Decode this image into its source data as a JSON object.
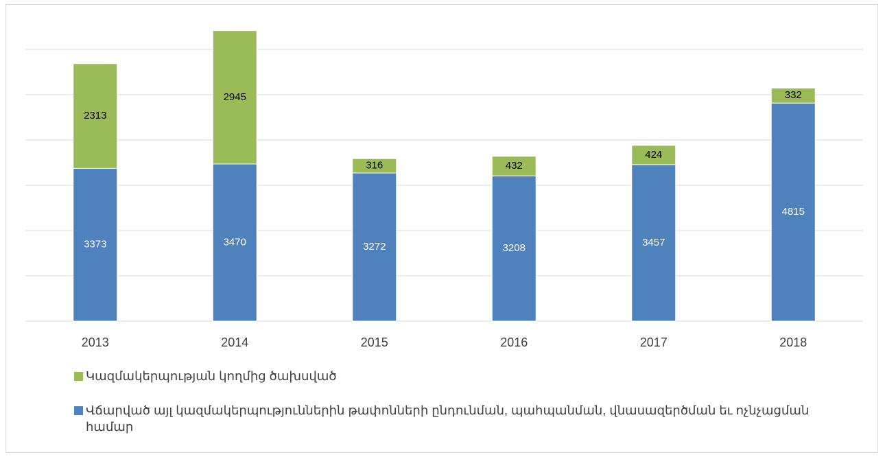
{
  "chart_data": {
    "type": "stacked_bar",
    "categories": [
      "2013",
      "2014",
      "2015",
      "2016",
      "2017",
      "2018"
    ],
    "series": [
      {
        "name": "Վճարված այլ կազմակերպություններին թափոնների ընդունման, պահպանման, վնասազերծման եւ ոչնչացման համար",
        "color": "#4f81bd",
        "values": [
          3373,
          3470,
          3272,
          3208,
          3457,
          4815
        ]
      },
      {
        "name": "Կազմակերպության կողմից ծախսված",
        "color": "#9bbb59",
        "values": [
          2313,
          2945,
          316,
          432,
          424,
          332
        ]
      }
    ],
    "ylim": [
      0,
      7000
    ],
    "yticks": [
      0,
      1000,
      2000,
      3000,
      4000,
      5000,
      6000
    ],
    "grid": true
  }
}
